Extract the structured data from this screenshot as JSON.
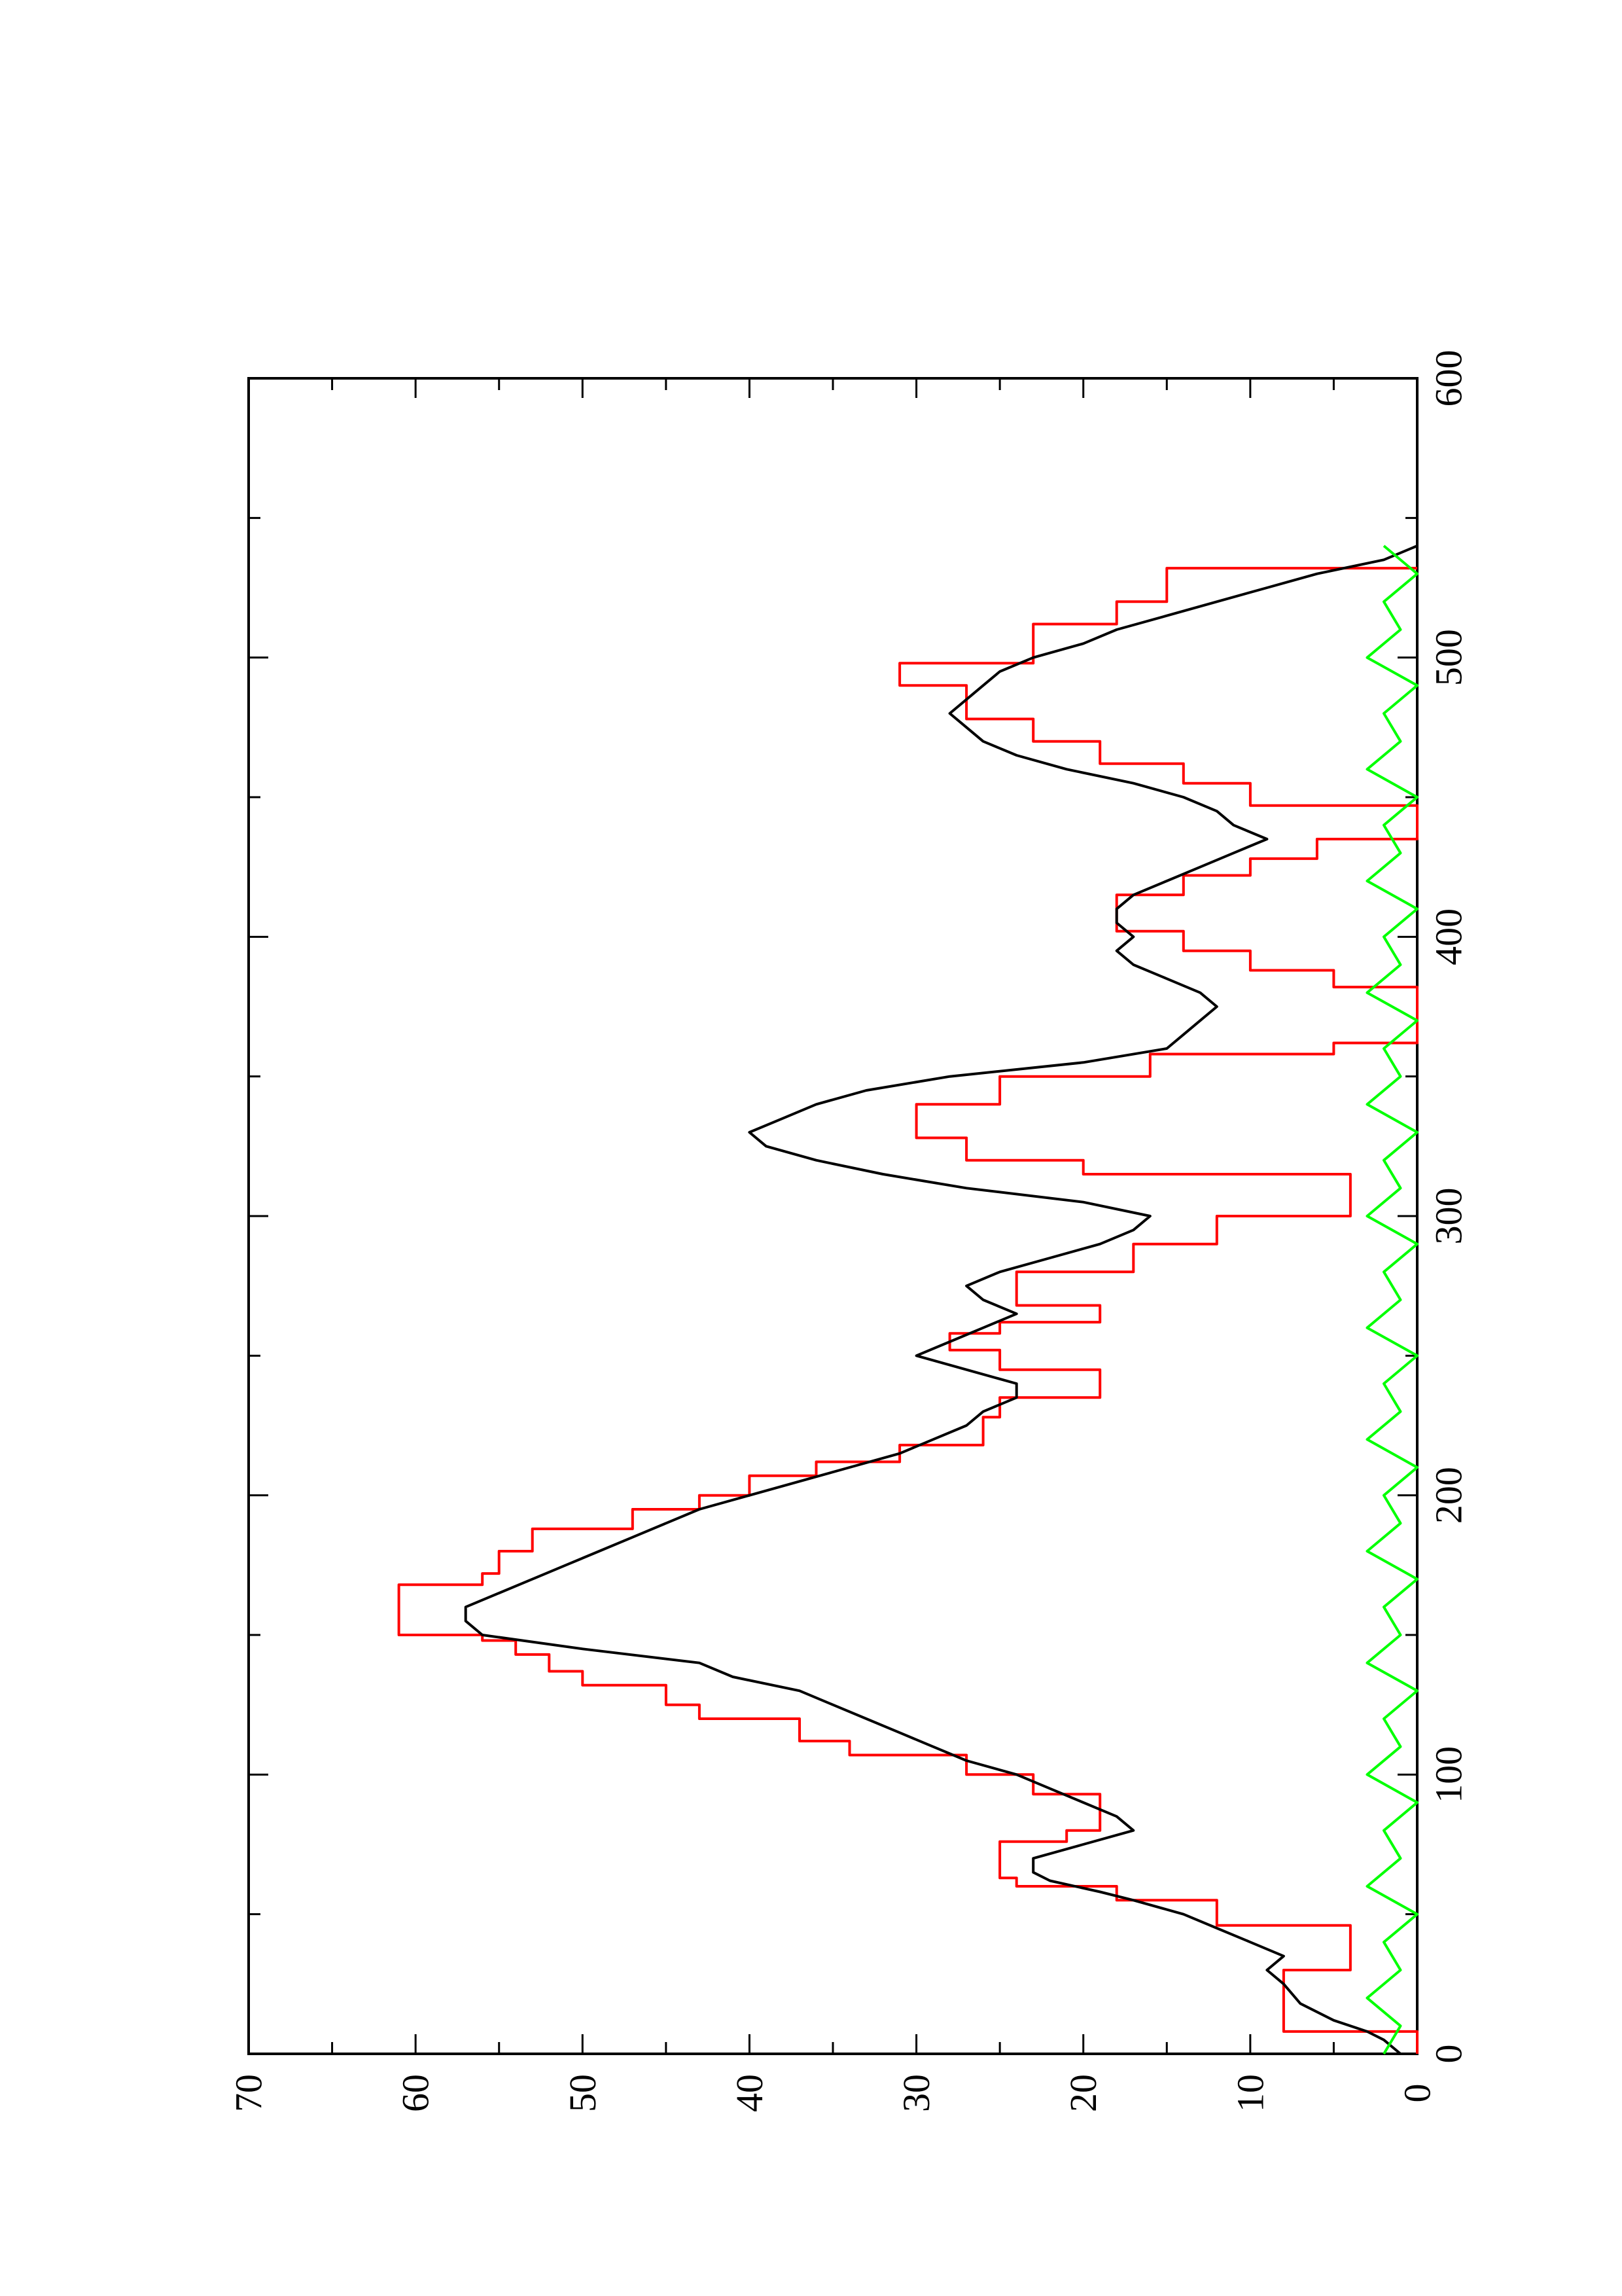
{
  "chart_data": {
    "type": "line",
    "orientation": "rotated-90-ccw",
    "title": "",
    "xlabel": "",
    "ylabel": "",
    "xlim": [
      0,
      600
    ],
    "ylim": [
      0,
      70
    ],
    "x_ticks": [
      "0",
      "100",
      "200",
      "300",
      "400",
      "500",
      "600"
    ],
    "y_ticks": [
      "0",
      "10",
      "20",
      "30",
      "40",
      "50",
      "60",
      "70"
    ],
    "grid": false,
    "legend": "none",
    "series": [
      {
        "color": "#ff0000",
        "style": "step",
        "points": [
          [
            0,
            0
          ],
          [
            8,
            8
          ],
          [
            28,
            8
          ],
          [
            30,
            4
          ],
          [
            37,
            4
          ],
          [
            46,
            12
          ],
          [
            55,
            18
          ],
          [
            60,
            24
          ],
          [
            63,
            25
          ],
          [
            68,
            25
          ],
          [
            76,
            21
          ],
          [
            80,
            19
          ],
          [
            88,
            19
          ],
          [
            93,
            23
          ],
          [
            100,
            27
          ],
          [
            107,
            34
          ],
          [
            112,
            37
          ],
          [
            120,
            43
          ],
          [
            125,
            45
          ],
          [
            132,
            50
          ],
          [
            137,
            52
          ],
          [
            143,
            54
          ],
          [
            148,
            56
          ],
          [
            150,
            61
          ],
          [
            163,
            61
          ],
          [
            168,
            56
          ],
          [
            172,
            55
          ],
          [
            180,
            53
          ],
          [
            188,
            47
          ],
          [
            195,
            43
          ],
          [
            200,
            40
          ],
          [
            207,
            36
          ],
          [
            212,
            31
          ],
          [
            218,
            26
          ],
          [
            228,
            25
          ],
          [
            235,
            19
          ],
          [
            240,
            19
          ],
          [
            245,
            25
          ],
          [
            252,
            28
          ],
          [
            258,
            25
          ],
          [
            262,
            19
          ],
          [
            265,
            19
          ],
          [
            268,
            24
          ],
          [
            272,
            24
          ],
          [
            280,
            17
          ],
          [
            290,
            12
          ],
          [
            300,
            4
          ],
          [
            303,
            4
          ],
          [
            315,
            20
          ],
          [
            320,
            27
          ],
          [
            328,
            30
          ],
          [
            333,
            30
          ],
          [
            340,
            25
          ],
          [
            350,
            16
          ],
          [
            358,
            5
          ],
          [
            362,
            0
          ],
          [
            378,
            0
          ],
          [
            382,
            5
          ],
          [
            388,
            10
          ],
          [
            395,
            14
          ],
          [
            402,
            18
          ],
          [
            409,
            18
          ],
          [
            415,
            14
          ],
          [
            422,
            10
          ],
          [
            428,
            6
          ],
          [
            435,
            0
          ],
          [
            440,
            0
          ],
          [
            447,
            10
          ],
          [
            455,
            14
          ],
          [
            462,
            19
          ],
          [
            470,
            23
          ],
          [
            478,
            27
          ],
          [
            482,
            27
          ],
          [
            490,
            31
          ],
          [
            494,
            31
          ],
          [
            498,
            23
          ],
          [
            505,
            23
          ],
          [
            512,
            18
          ],
          [
            520,
            15
          ],
          [
            532,
            0
          ]
        ]
      },
      {
        "color": "#000000",
        "style": "line",
        "points": [
          [
            0,
            1
          ],
          [
            5,
            2
          ],
          [
            8,
            3
          ],
          [
            12,
            5
          ],
          [
            18,
            7
          ],
          [
            25,
            8
          ],
          [
            30,
            9
          ],
          [
            35,
            8
          ],
          [
            40,
            10
          ],
          [
            45,
            12
          ],
          [
            50,
            14
          ],
          [
            55,
            17
          ],
          [
            58,
            19
          ],
          [
            62,
            22
          ],
          [
            65,
            23
          ],
          [
            70,
            23
          ],
          [
            75,
            20
          ],
          [
            80,
            17
          ],
          [
            85,
            18
          ],
          [
            90,
            20
          ],
          [
            95,
            22
          ],
          [
            100,
            24
          ],
          [
            105,
            27
          ],
          [
            110,
            29
          ],
          [
            115,
            31
          ],
          [
            120,
            33
          ],
          [
            125,
            35
          ],
          [
            130,
            37
          ],
          [
            135,
            41
          ],
          [
            140,
            43
          ],
          [
            145,
            50
          ],
          [
            150,
            56
          ],
          [
            155,
            57
          ],
          [
            160,
            57
          ],
          [
            165,
            55
          ],
          [
            170,
            53
          ],
          [
            175,
            51
          ],
          [
            180,
            49
          ],
          [
            185,
            47
          ],
          [
            190,
            45
          ],
          [
            195,
            43
          ],
          [
            200,
            40
          ],
          [
            205,
            37
          ],
          [
            210,
            34
          ],
          [
            215,
            31
          ],
          [
            220,
            29
          ],
          [
            225,
            27
          ],
          [
            230,
            26
          ],
          [
            235,
            24
          ],
          [
            240,
            24
          ],
          [
            245,
            27
          ],
          [
            250,
            30
          ],
          [
            255,
            28
          ],
          [
            260,
            26
          ],
          [
            265,
            24
          ],
          [
            270,
            26
          ],
          [
            275,
            27
          ],
          [
            280,
            25
          ],
          [
            285,
            22
          ],
          [
            290,
            19
          ],
          [
            295,
            17
          ],
          [
            300,
            16
          ],
          [
            305,
            20
          ],
          [
            310,
            27
          ],
          [
            315,
            32
          ],
          [
            320,
            36
          ],
          [
            325,
            39
          ],
          [
            330,
            40
          ],
          [
            335,
            38
          ],
          [
            340,
            36
          ],
          [
            345,
            33
          ],
          [
            350,
            28
          ],
          [
            355,
            20
          ],
          [
            360,
            15
          ],
          [
            365,
            14
          ],
          [
            370,
            13
          ],
          [
            375,
            12
          ],
          [
            380,
            13
          ],
          [
            385,
            15
          ],
          [
            390,
            17
          ],
          [
            395,
            18
          ],
          [
            400,
            17
          ],
          [
            405,
            18
          ],
          [
            410,
            18
          ],
          [
            415,
            17
          ],
          [
            420,
            15
          ],
          [
            425,
            13
          ],
          [
            430,
            11
          ],
          [
            435,
            9
          ],
          [
            440,
            11
          ],
          [
            445,
            12
          ],
          [
            450,
            14
          ],
          [
            455,
            17
          ],
          [
            460,
            21
          ],
          [
            465,
            24
          ],
          [
            470,
            26
          ],
          [
            475,
            27
          ],
          [
            480,
            28
          ],
          [
            485,
            27
          ],
          [
            490,
            26
          ],
          [
            495,
            25
          ],
          [
            500,
            23
          ],
          [
            505,
            20
          ],
          [
            510,
            18
          ],
          [
            515,
            15
          ],
          [
            520,
            12
          ],
          [
            525,
            9
          ],
          [
            530,
            6
          ],
          [
            535,
            2
          ],
          [
            540,
            0
          ]
        ]
      },
      {
        "color": "#00ff00",
        "style": "line",
        "points": [
          [
            0,
            2
          ],
          [
            10,
            1
          ],
          [
            20,
            3
          ],
          [
            30,
            1
          ],
          [
            40,
            2
          ],
          [
            50,
            0
          ],
          [
            60,
            3
          ],
          [
            70,
            1
          ],
          [
            80,
            2
          ],
          [
            90,
            0
          ],
          [
            100,
            3
          ],
          [
            110,
            1
          ],
          [
            120,
            2
          ],
          [
            130,
            0
          ],
          [
            140,
            3
          ],
          [
            150,
            1
          ],
          [
            160,
            2
          ],
          [
            170,
            0
          ],
          [
            180,
            3
          ],
          [
            190,
            1
          ],
          [
            200,
            2
          ],
          [
            210,
            0
          ],
          [
            220,
            3
          ],
          [
            230,
            1
          ],
          [
            240,
            2
          ],
          [
            250,
            0
          ],
          [
            260,
            3
          ],
          [
            270,
            1
          ],
          [
            280,
            2
          ],
          [
            290,
            0
          ],
          [
            300,
            3
          ],
          [
            310,
            1
          ],
          [
            320,
            2
          ],
          [
            330,
            0
          ],
          [
            340,
            3
          ],
          [
            350,
            1
          ],
          [
            360,
            2
          ],
          [
            370,
            0
          ],
          [
            380,
            3
          ],
          [
            390,
            1
          ],
          [
            400,
            2
          ],
          [
            410,
            0
          ],
          [
            420,
            3
          ],
          [
            430,
            1
          ],
          [
            440,
            2
          ],
          [
            450,
            0
          ],
          [
            460,
            3
          ],
          [
            470,
            1
          ],
          [
            480,
            2
          ],
          [
            490,
            0
          ],
          [
            500,
            3
          ],
          [
            510,
            1
          ],
          [
            520,
            2
          ],
          [
            530,
            0
          ],
          [
            540,
            2
          ]
        ]
      }
    ]
  }
}
